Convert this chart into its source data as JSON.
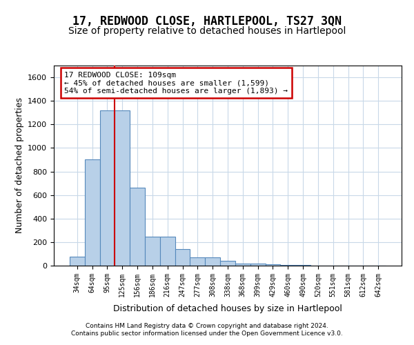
{
  "title": "17, REDWOOD CLOSE, HARTLEPOOL, TS27 3QN",
  "subtitle": "Size of property relative to detached houses in Hartlepool",
  "xlabel": "Distribution of detached houses by size in Hartlepool",
  "ylabel": "Number of detached properties",
  "bar_values": [
    75,
    900,
    1320,
    1320,
    665,
    245,
    245,
    140,
    70,
    70,
    40,
    20,
    20,
    10,
    5,
    3,
    2,
    1,
    1,
    0,
    0
  ],
  "bin_labels": [
    "34sqm",
    "64sqm",
    "95sqm",
    "125sqm",
    "156sqm",
    "186sqm",
    "216sqm",
    "247sqm",
    "277sqm",
    "308sqm",
    "338sqm",
    "368sqm",
    "399sqm",
    "429sqm",
    "460sqm",
    "490sqm",
    "520sqm",
    "551sqm",
    "581sqm",
    "612sqm",
    "642sqm"
  ],
  "bar_color": "#b8d0e8",
  "bar_edge_color": "#5588bb",
  "property_line_x": 2.5,
  "annotation_line1": "17 REDWOOD CLOSE: 109sqm",
  "annotation_line2": "← 45% of detached houses are smaller (1,599)",
  "annotation_line3": "54% of semi-detached houses are larger (1,893) →",
  "annotation_box_color": "#ffffff",
  "annotation_box_edge": "#cc0000",
  "vline_color": "#cc0000",
  "ylim": [
    0,
    1700
  ],
  "yticks": [
    0,
    200,
    400,
    600,
    800,
    1000,
    1200,
    1400,
    1600
  ],
  "footer_line1": "Contains HM Land Registry data © Crown copyright and database right 2024.",
  "footer_line2": "Contains public sector information licensed under the Open Government Licence v3.0.",
  "bg_color": "#ffffff",
  "grid_color": "#c8d8e8",
  "title_fontsize": 12,
  "subtitle_fontsize": 10,
  "xlabel_fontsize": 9,
  "ylabel_fontsize": 9,
  "annotation_fontsize": 8
}
